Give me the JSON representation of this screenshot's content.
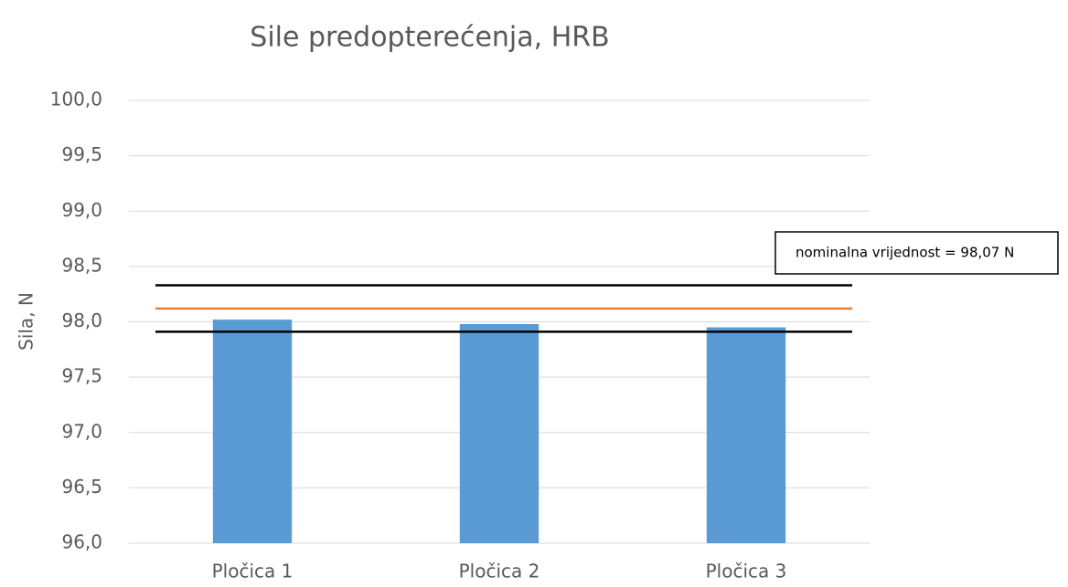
{
  "chart_data": {
    "type": "bar",
    "title": "Sile predopterećenja, HRB",
    "y_label": "Sila, N",
    "categories": [
      "Pločica 1",
      "Pločica 2",
      "Pločica 3"
    ],
    "values": [
      98.02,
      97.98,
      97.95
    ],
    "color": "#5b9bd5",
    "ylim": [
      96.0,
      100.0
    ],
    "yticks": [
      {
        "value": 96.0,
        "label": "96,0"
      },
      {
        "value": 96.5,
        "label": "96,5"
      },
      {
        "value": 97.0,
        "label": "97,0"
      },
      {
        "value": 97.5,
        "label": "97,5"
      },
      {
        "value": 98.0,
        "label": "98,0"
      },
      {
        "value": 98.5,
        "label": "98,5"
      },
      {
        "value": 99.0,
        "label": "99,0"
      },
      {
        "value": 99.5,
        "label": "99,5"
      },
      {
        "value": 100.0,
        "label": "100,0"
      }
    ],
    "grid": true,
    "reference_lines": [
      {
        "value": 98.33,
        "color": "#000000"
      },
      {
        "value": 98.12,
        "color": "#ed7d31"
      },
      {
        "value": 97.91,
        "color": "#000000"
      }
    ],
    "annotation": "nominalna vrijednost = 98,07 N"
  }
}
